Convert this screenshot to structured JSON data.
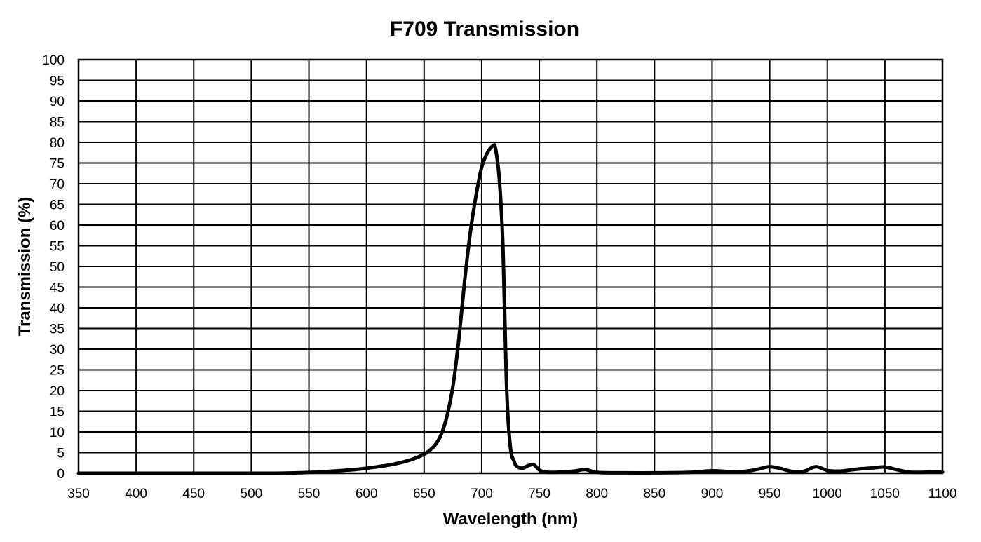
{
  "chart_data": {
    "type": "line",
    "title": "F709 Transmission",
    "xlabel": "Wavelength (nm)",
    "ylabel": "Transmission (%)",
    "xlim": [
      350,
      1100
    ],
    "ylim": [
      0,
      100
    ],
    "x_ticks": [
      "350",
      "400",
      "450",
      "500",
      "550",
      "600",
      "650",
      "700",
      "750",
      "800",
      "850",
      "900",
      "950",
      "1000",
      "1050",
      "1100"
    ],
    "y_ticks": [
      "0",
      "5",
      "10",
      "15",
      "20",
      "25",
      "30",
      "35",
      "40",
      "45",
      "50",
      "55",
      "60",
      "65",
      "70",
      "75",
      "80",
      "85",
      "90",
      "95",
      "100"
    ],
    "grid": true,
    "legend": "none",
    "line_color": "#000000",
    "series": [
      {
        "x": [
          350,
          400,
          450,
          500,
          520,
          540,
          550,
          560,
          570,
          580,
          590,
          600,
          610,
          620,
          630,
          640,
          650,
          655,
          660,
          665,
          670,
          675,
          680,
          685,
          690,
          695,
          700,
          705,
          710,
          712,
          715,
          718,
          720,
          722,
          725,
          728,
          730,
          735,
          740,
          745,
          750,
          755,
          760,
          770,
          780,
          790,
          800,
          820,
          850,
          880,
          900,
          920,
          930,
          940,
          950,
          960,
          970,
          980,
          990,
          1000,
          1010,
          1020,
          1030,
          1040,
          1050,
          1060,
          1070,
          1080,
          1090,
          1100
        ],
        "y": [
          0,
          0,
          0,
          0,
          0,
          0.1,
          0.2,
          0.3,
          0.5,
          0.7,
          0.9,
          1.2,
          1.6,
          2.0,
          2.6,
          3.4,
          4.6,
          5.6,
          7.0,
          9.5,
          14,
          21,
          32,
          46,
          58,
          67,
          74,
          77.5,
          79.2,
          78.5,
          72,
          58,
          38,
          18,
          6,
          3,
          1.8,
          1.2,
          1.8,
          2.1,
          0.8,
          0.3,
          0.2,
          0.3,
          0.5,
          0.9,
          0.2,
          0.1,
          0.1,
          0.2,
          0.6,
          0.3,
          0.5,
          1.0,
          1.6,
          1.1,
          0.4,
          0.5,
          1.6,
          0.7,
          0.5,
          0.8,
          1.1,
          1.3,
          1.5,
          0.9,
          0.3,
          0.2,
          0.3,
          0.3
        ]
      }
    ]
  }
}
